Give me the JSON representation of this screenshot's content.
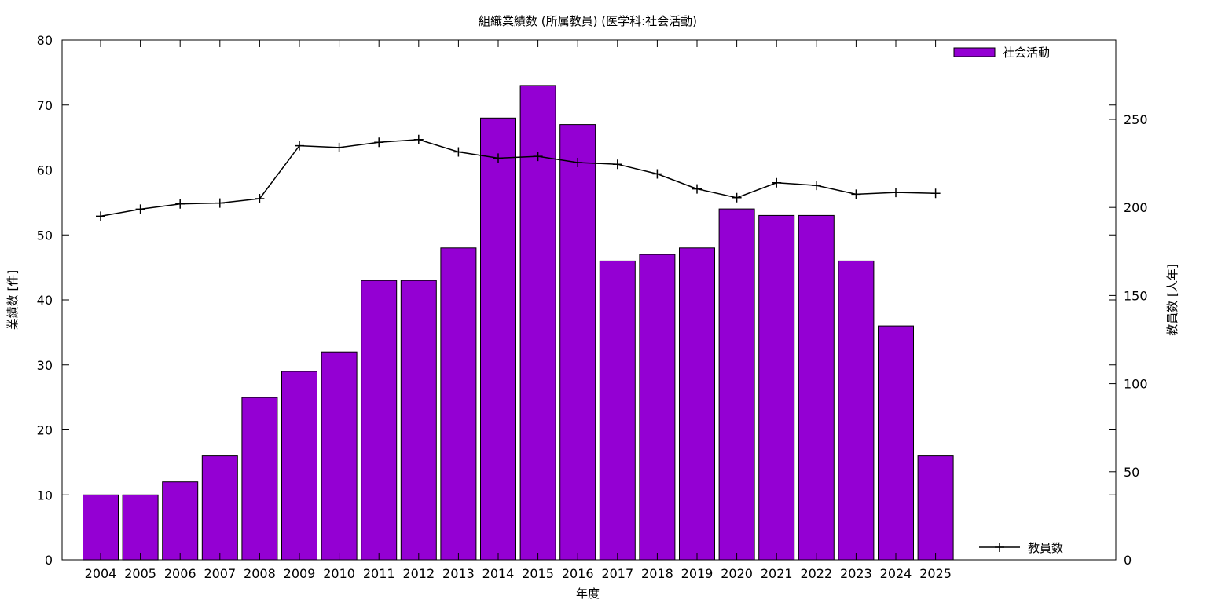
{
  "chart_data": {
    "type": "bar",
    "title": "組織業績数 (所属教員) (医学科:社会活動)",
    "xlabel": "年度",
    "ylabel": "業績数 [件]",
    "y2label": "教員数 [人年]",
    "categories": [
      "2004",
      "2005",
      "2006",
      "2007",
      "2008",
      "2009",
      "2010",
      "2011",
      "2012",
      "2013",
      "2014",
      "2015",
      "2016",
      "2017",
      "2018",
      "2019",
      "2020",
      "2021",
      "2022",
      "2023",
      "2024",
      "2025"
    ],
    "ylim": [
      0,
      80
    ],
    "yticks": [
      0,
      10,
      20,
      30,
      40,
      50,
      60,
      70,
      80
    ],
    "y2lim": [
      0,
      295
    ],
    "y2ticks": [
      0,
      50,
      100,
      150,
      200,
      250
    ],
    "grid": false,
    "series": [
      {
        "name": "社会活動",
        "type": "bar",
        "axis": "left",
        "color": "#9400d3",
        "legend_position": "top-right",
        "values": [
          10,
          10,
          12,
          16,
          25,
          29,
          32,
          43,
          43,
          48,
          68,
          73,
          67,
          46,
          47,
          48,
          54,
          53,
          53,
          46,
          36,
          16
        ]
      },
      {
        "name": "教員数",
        "type": "line",
        "axis": "right",
        "color": "#000000",
        "marker": "plus",
        "legend_position": "bottom-right",
        "values": [
          195,
          199,
          202,
          202.5,
          205,
          235,
          234,
          237,
          238.5,
          231.5,
          228,
          229,
          225.5,
          224.5,
          219,
          210.5,
          205.5,
          214,
          212.5,
          207.5,
          208.5,
          208
        ]
      }
    ]
  }
}
